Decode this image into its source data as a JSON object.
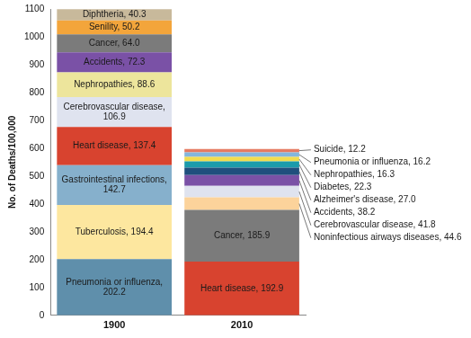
{
  "chart_data": {
    "type": "bar",
    "stacked": true,
    "data_labels": true,
    "grid": false,
    "y_label": "No. of Deaths/100,000",
    "categories": [
      "1900",
      "2010"
    ],
    "ylim": [
      0,
      1100
    ],
    "yticks": [
      0,
      100,
      200,
      300,
      400,
      500,
      600,
      700,
      800,
      900,
      1000,
      1100
    ],
    "series": [
      {
        "name": "Pneumonia or influenza",
        "color": "#5f8fab",
        "values": [
          202.2,
          null
        ],
        "value_labels": [
          "Pneumonia or influenza, 202.2",
          null
        ]
      },
      {
        "name": "Tuberculosis",
        "color": "#fde79f",
        "values": [
          194.4,
          null
        ],
        "value_labels": [
          "Tuberculosis, 194.4",
          null
        ]
      },
      {
        "name": "Gastrointestinal infections",
        "color": "#86b0cc",
        "values": [
          142.7,
          null
        ],
        "value_labels": [
          "Gastrointestinal infections, 142.7",
          null
        ]
      },
      {
        "name": "Heart disease",
        "color": "#d8432f",
        "values": [
          137.4,
          null
        ],
        "value_labels": [
          "Heart disease, 137.4",
          null
        ]
      },
      {
        "name": "Cerebrovascular disease",
        "color": "#dfe3ef",
        "values": [
          106.9,
          null
        ],
        "value_labels": [
          "Cerebrovascular disease, 106.9",
          null
        ]
      },
      {
        "name": "Nephropathies",
        "color": "#ede59c",
        "values": [
          88.6,
          null
        ],
        "value_labels": [
          "Nephropathies, 88.6",
          null
        ]
      },
      {
        "name": "Accidents",
        "color": "#7a51a6",
        "values": [
          72.3,
          null
        ],
        "value_labels": [
          "Accidents, 72.3",
          null
        ]
      },
      {
        "name": "Cancer",
        "color": "#7b7b7b",
        "values": [
          64.0,
          null
        ],
        "value_labels": [
          "Cancer, 64.0",
          null
        ]
      },
      {
        "name": "Senility",
        "color": "#f3a53b",
        "values": [
          50.2,
          null
        ],
        "value_labels": [
          "Senility, 50.2",
          null
        ]
      },
      {
        "name": "Diphtheria",
        "color": "#c8b99b",
        "values": [
          40.3,
          null
        ],
        "value_labels": [
          "Diphtheria, 40.3",
          null
        ]
      },
      {
        "name": "Heart disease",
        "color": "#d8432f",
        "values": [
          null,
          192.9
        ],
        "value_labels": [
          null,
          "Heart disease, 192.9"
        ]
      },
      {
        "name": "Cancer",
        "color": "#7b7b7b",
        "values": [
          null,
          185.9
        ],
        "value_labels": [
          null,
          "Cancer, 185.9"
        ]
      },
      {
        "name": "Noninfectious airways diseases",
        "color": "#fcd39b",
        "values": [
          null,
          44.6
        ],
        "value_labels": [
          null,
          "Noninfectious airways diseases, 44.6"
        ]
      },
      {
        "name": "Cerebrovascular disease",
        "color": "#dfe3ef",
        "values": [
          null,
          41.8
        ],
        "value_labels": [
          null,
          "Cerebrovascular disease, 41.8"
        ]
      },
      {
        "name": "Accidents",
        "color": "#7a51a6",
        "values": [
          null,
          38.2
        ],
        "value_labels": [
          null,
          "Accidents, 38.2"
        ]
      },
      {
        "name": "Alzheimer's disease",
        "color": "#1f4f7d",
        "values": [
          null,
          27.0
        ],
        "value_labels": [
          null,
          "Alzheimer's disease, 27.0"
        ]
      },
      {
        "name": "Diabetes",
        "color": "#1b9bab",
        "values": [
          null,
          22.3
        ],
        "value_labels": [
          null,
          "Diabetes, 22.3"
        ]
      },
      {
        "name": "Nephropathies",
        "color": "#f2dc4e",
        "values": [
          null,
          16.3
        ],
        "value_labels": [
          null,
          "Nephropathies, 16.3"
        ]
      },
      {
        "name": "Pneumonia or influenza",
        "color": "#84b6dc",
        "values": [
          null,
          16.2
        ],
        "value_labels": [
          null,
          "Pneumonia or influenza, 16.2"
        ]
      },
      {
        "name": "Suicide",
        "color": "#e67b62",
        "values": [
          null,
          12.2
        ],
        "value_labels": [
          null,
          "Suicide, 12.2"
        ]
      }
    ]
  }
}
